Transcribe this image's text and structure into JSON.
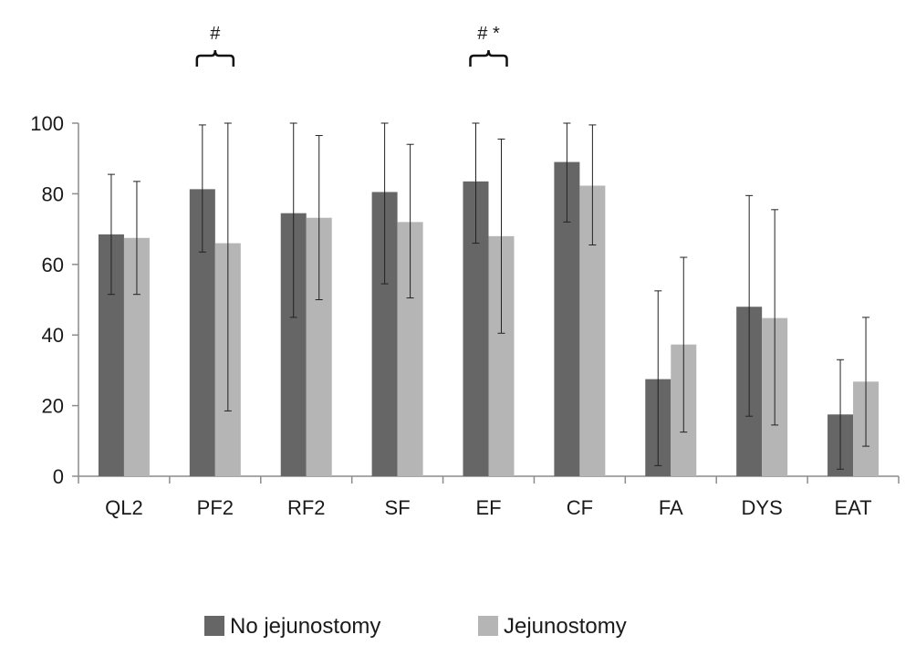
{
  "chart_data": {
    "type": "bar",
    "categories": [
      "QL2",
      "PF2",
      "RF2",
      "SF",
      "EF",
      "CF",
      "FA",
      "DYS",
      "EAT"
    ],
    "series": [
      {
        "name": "No jejunostomy",
        "color": "#666666",
        "values": [
          68.5,
          81.3,
          74.5,
          80.5,
          83.5,
          89.0,
          27.5,
          48.0,
          17.5
        ],
        "err_low": [
          51.5,
          63.5,
          45.0,
          54.5,
          66.0,
          72.0,
          3.0,
          17.0,
          2.0
        ],
        "err_high": [
          85.5,
          99.5,
          100,
          100,
          100,
          100,
          52.5,
          79.5,
          33.0
        ]
      },
      {
        "name": "Jejunostomy",
        "color": "#b5b5b5",
        "values": [
          67.5,
          66.0,
          73.2,
          72.0,
          68.0,
          82.3,
          37.3,
          44.8,
          26.8
        ],
        "err_low": [
          51.5,
          18.5,
          50.0,
          50.5,
          40.5,
          65.5,
          12.5,
          14.5,
          8.5
        ],
        "err_high": [
          83.5,
          100,
          96.5,
          94.0,
          95.5,
          99.5,
          62.0,
          75.5,
          45.0
        ]
      }
    ],
    "ylim": [
      0,
      100
    ],
    "yticks": [
      0,
      20,
      40,
      60,
      80,
      100
    ],
    "grid": false,
    "legend_position": "bottom",
    "annotations": [
      {
        "category": "PF2",
        "text": "#"
      },
      {
        "category": "EF",
        "text": "# *"
      }
    ],
    "title": "",
    "xlabel": "",
    "ylabel": ""
  }
}
